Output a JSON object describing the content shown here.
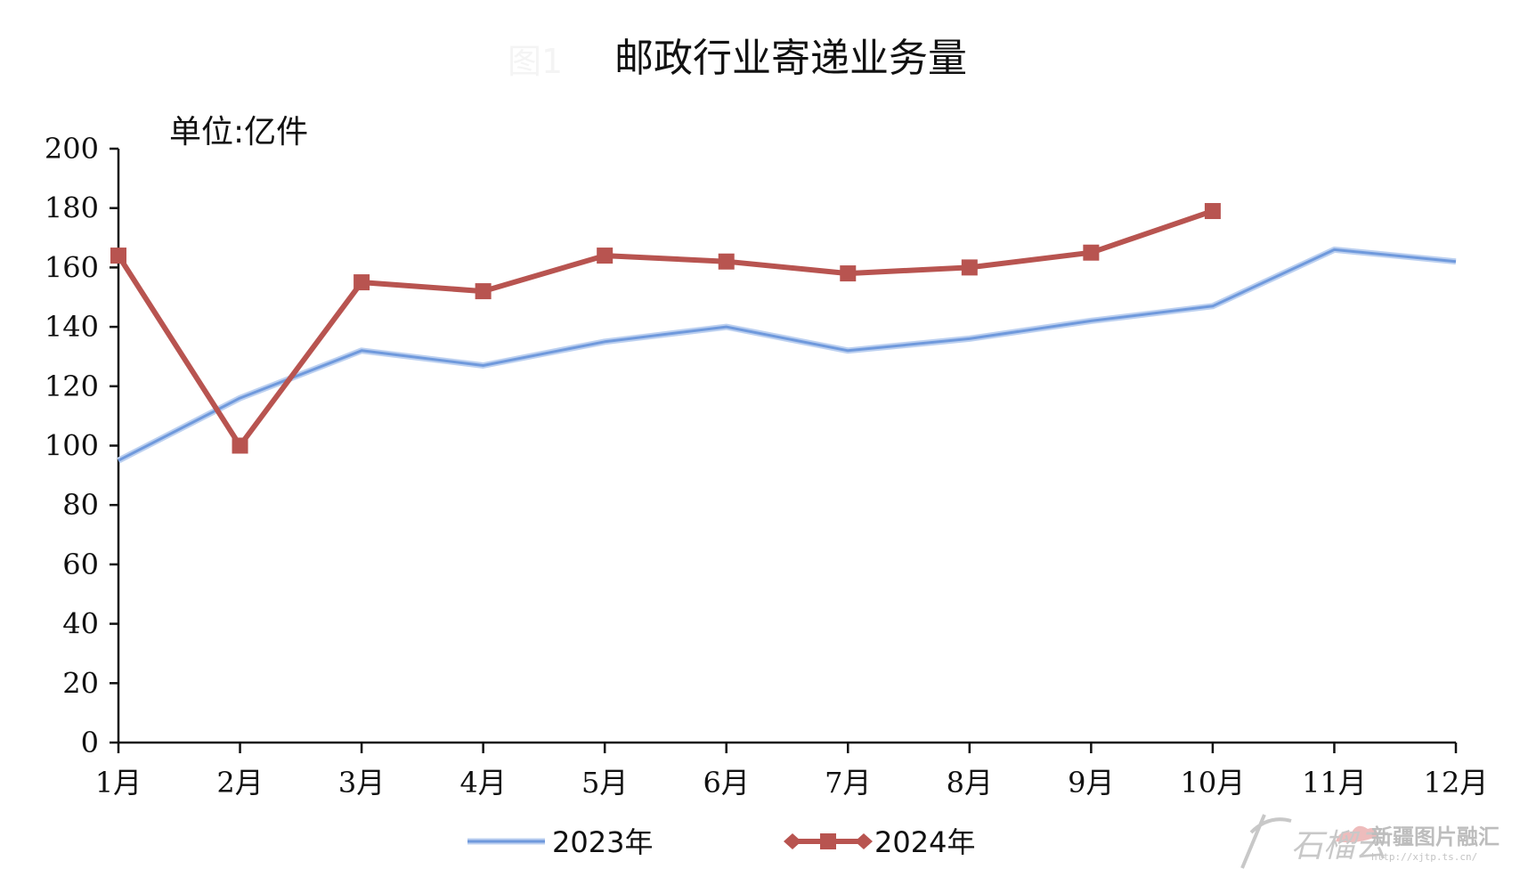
{
  "chart_data": {
    "type": "line",
    "figure_label": "图1",
    "title": "邮政行业寄递业务量",
    "unit_label": "单位:亿件",
    "categories": [
      "1月",
      "2月",
      "3月",
      "4月",
      "5月",
      "6月",
      "7月",
      "8月",
      "9月",
      "10月",
      "11月",
      "12月"
    ],
    "yticks": [
      "0",
      "20",
      "40",
      "60",
      "80",
      "100",
      "120",
      "140",
      "160",
      "180",
      "200"
    ],
    "ylim": [
      0,
      200
    ],
    "legend_position": "bottom-center",
    "grid": false,
    "series": [
      {
        "name": "2023年",
        "color": "#6f99dc",
        "marker": "none",
        "values": [
          95,
          116,
          132,
          127,
          135,
          140,
          132,
          136,
          142,
          147,
          166,
          162
        ]
      },
      {
        "name": "2024年",
        "color": "#b85450",
        "marker": "square",
        "values": [
          164,
          100,
          155,
          152,
          164,
          162,
          158,
          160,
          165,
          179,
          null,
          null
        ]
      }
    ]
  },
  "watermark": {
    "brand": "石榴云",
    "name": "新疆图片融汇",
    "url": "http://xjtp.ts.cn/"
  }
}
